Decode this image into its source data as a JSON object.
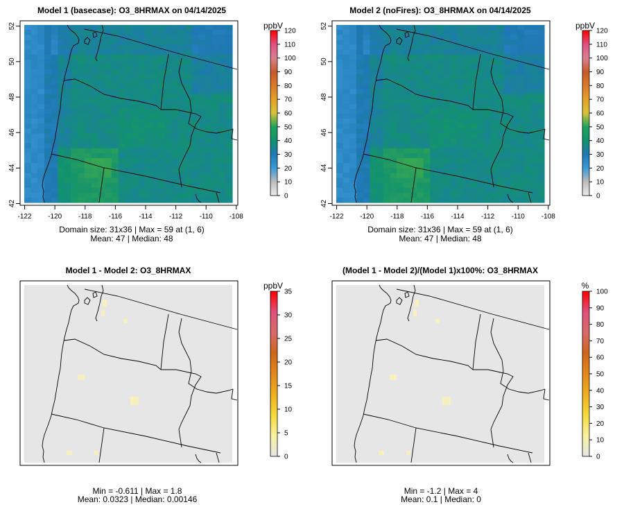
{
  "chart_data": [
    {
      "type": "heatmap",
      "title": "Model 1 (basecase): O3_8HRMAX on 04/14/2025",
      "x_ticks": [
        "-122",
        "-120",
        "-118",
        "-116",
        "-114",
        "-112",
        "-110",
        "-108"
      ],
      "y_ticks": [
        "42",
        "44",
        "46",
        "48",
        "50",
        "52"
      ],
      "xlim": [
        -122.3,
        -107.9
      ],
      "ylim": [
        41.9,
        52.3
      ],
      "grid": "31x36",
      "colorbar": {
        "unit": "ppbV",
        "ticks": [
          "0",
          "10",
          "20",
          "30",
          "40",
          "50",
          "60",
          "70",
          "80",
          "90",
          "100",
          "110",
          "120"
        ],
        "range": [
          0,
          120
        ]
      },
      "stats": [
        "Domain size: 31x36 | Max = 59 at (1, 6)",
        "Mean: 47 |  Median: 48"
      ],
      "field": {
        "min": 29,
        "max": 59,
        "mean": 47,
        "median": 48
      }
    },
    {
      "type": "heatmap",
      "title": "Model 2 (noFires): O3_8HRMAX on 04/14/2025",
      "x_ticks": [
        "-122",
        "-120",
        "-118",
        "-116",
        "-114",
        "-112",
        "-110",
        "-108"
      ],
      "y_ticks": [
        "42",
        "44",
        "46",
        "48",
        "50",
        "52"
      ],
      "xlim": [
        -122.3,
        -107.9
      ],
      "ylim": [
        41.9,
        52.3
      ],
      "grid": "31x36",
      "colorbar": {
        "unit": "ppbV",
        "ticks": [
          "0",
          "10",
          "20",
          "30",
          "40",
          "50",
          "60",
          "70",
          "80",
          "90",
          "100",
          "110",
          "120"
        ],
        "range": [
          0,
          120
        ]
      },
      "stats": [
        "Domain size: 31x36 | Max = 59 at (1, 6)",
        "Mean: 47 |  Median: 48"
      ],
      "field": {
        "min": 29,
        "max": 59,
        "mean": 47,
        "median": 48
      }
    },
    {
      "type": "heatmap",
      "title": "Model 1 - Model 2: O3_8HRMAX",
      "colorbar": {
        "unit": "ppbV",
        "ticks": [
          "0",
          "5",
          "10",
          "15",
          "20",
          "25",
          "30",
          "35"
        ],
        "range": [
          0,
          35
        ]
      },
      "stats": [
        "Min = -0.611 | Max = 1.8",
        "Mean: 0.0323 |  Median: 0.00146"
      ],
      "field": {
        "min": -0.611,
        "max": 1.8,
        "mean": 0.0323,
        "median": 0.00146
      }
    },
    {
      "type": "heatmap",
      "title": "(Model 1 - Model 2)/(Model 1)x100%: O3_8HRMAX",
      "colorbar": {
        "unit": "%",
        "ticks": [
          "0",
          "10",
          "20",
          "30",
          "40",
          "50",
          "60",
          "70",
          "80",
          "90",
          "100"
        ],
        "range": [
          0,
          100
        ]
      },
      "stats": [
        "Min = -1.2 | Max = 4",
        "Mean: 0.1 |  Median: 0"
      ],
      "field": {
        "min": -1.2,
        "max": 4,
        "mean": 0.1,
        "median": 0
      }
    }
  ],
  "colors": {
    "abs_ramp": [
      "#ebebeb",
      "#bdbdbd",
      "#3b9ad6",
      "#1f78b4",
      "#12926e",
      "#1ea35b",
      "#d7c23a",
      "#e3a126",
      "#d97a2a",
      "#c65a2a",
      "#d98090",
      "#e05080",
      "#ff0000"
    ],
    "diff_ramp": [
      "#e6e6e6",
      "#f8f2a0",
      "#f5d93a",
      "#eeb020",
      "#e2881c",
      "#d0651a",
      "#d86a6a",
      "#e0507a",
      "#ff0000"
    ]
  }
}
